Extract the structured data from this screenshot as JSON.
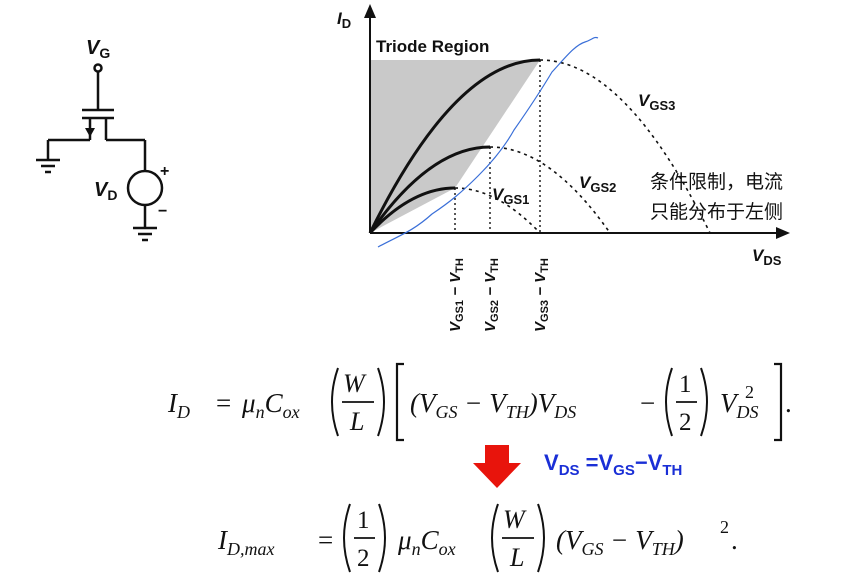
{
  "circuit": {
    "gate_label": "V",
    "gate_sub": "G",
    "source_label": "V",
    "source_sub": "D",
    "plus": "+",
    "minus": "−"
  },
  "graph": {
    "y_axis_label": "I",
    "y_axis_sub": "D",
    "x_axis_label": "V",
    "x_axis_sub": "DS",
    "region_label": "Triode Region",
    "curves": [
      {
        "label": "V",
        "sub": "GS1",
        "tick_pre": "V",
        "tick_sub": "GS1",
        "tick_post": " − V",
        "tick_sub2": "TH"
      },
      {
        "label": "V",
        "sub": "GS2",
        "tick_pre": "V",
        "tick_sub": "GS2",
        "tick_post": " − V",
        "tick_sub2": "TH"
      },
      {
        "label": "V",
        "sub": "GS3",
        "tick_pre": "V",
        "tick_sub": "GS3",
        "tick_post": " − V",
        "tick_sub2": "TH"
      }
    ],
    "note_line1": "条件限制，电流",
    "note_line2": "只能分布于左侧",
    "colors": {
      "region_fill": "#c9c9c9",
      "note_curve": "#3a6fd8",
      "arrow": "#e8140c",
      "condition_text": "#1a2fd6"
    }
  },
  "equations": {
    "eq1": {
      "lhs": "I",
      "lhs_sub": "D",
      "mu": "μ",
      "mu_sub": "n",
      "cox": "C",
      "cox_sub": "ox",
      "frac_num": "W",
      "frac_den": "L",
      "t1": "(V",
      "t1_sub": "GS",
      "t2": " − V",
      "t2_sub": "TH",
      "t3": ")V",
      "t3_sub": "DS",
      "minus": "−",
      "half_num": "1",
      "half_den": "2",
      "t4": "V",
      "t4_sub": "DS",
      "t4_sup": "2",
      "end": "."
    },
    "condition": {
      "v1": "V",
      "v1_sub": "DS",
      "eq": " =V",
      "v2_sub": "GS",
      "dash": "−V",
      "v3_sub": "TH"
    },
    "eq2": {
      "lhs": "I",
      "lhs_sub": "D,max",
      "half_num": "1",
      "half_den": "2",
      "mu": "μ",
      "mu_sub": "n",
      "cox": "C",
      "cox_sub": "ox",
      "frac_num": "W",
      "frac_den": "L",
      "t1": "(V",
      "t1_sub": "GS",
      "t2": " − V",
      "t2_sub": "TH",
      "t3": ")",
      "sup": "2",
      "end": "."
    }
  }
}
